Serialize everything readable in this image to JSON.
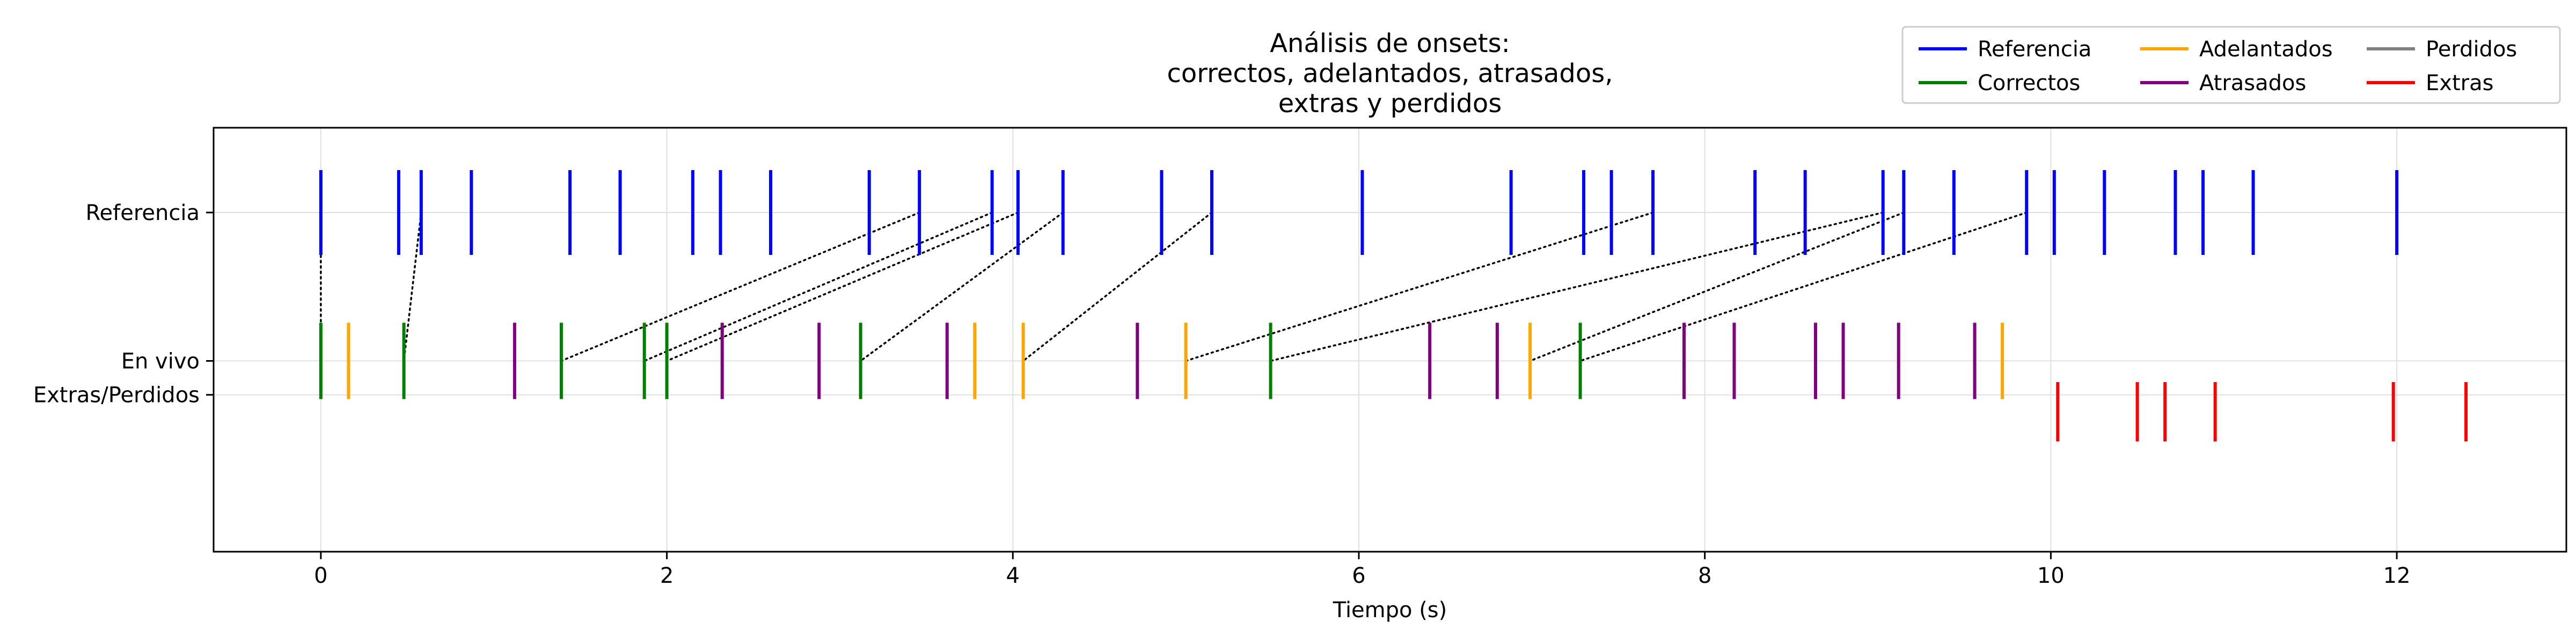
{
  "chart_data": {
    "type": "event-raster",
    "title": [
      "Análisis de onsets:",
      "correctos, adelantados, atrasados,",
      "extras y perdidos"
    ],
    "xlabel": "Tiempo (s)",
    "ylabel": "",
    "xlim": [
      -0.62,
      12.98
    ],
    "ylim": [
      0,
      10
    ],
    "grid": true,
    "legend_position": "top-right",
    "xticks": [
      0,
      2,
      4,
      6,
      8,
      10,
      12
    ],
    "rows": [
      {
        "label": "Referencia",
        "y": 8
      },
      {
        "label": "En vivo",
        "y": 4.5
      },
      {
        "label": "Extras/Perdidos",
        "y": 3.7
      }
    ],
    "colors": {
      "Referencia": "#0000ff",
      "Correctos": "#008000",
      "Adelantados": "#ffa500",
      "Atrasados": "#800080",
      "Perdidos": "#808080",
      "Extras": "#ff0000"
    },
    "legend": [
      "Referencia",
      "Correctos",
      "Adelantados",
      "Atrasados",
      "Perdidos",
      "Extras"
    ],
    "series": [
      {
        "name": "Referencia",
        "row": "Referencia",
        "y_range": [
          7,
          9
        ],
        "x": [
          0.0,
          0.45,
          0.58,
          0.87,
          1.44,
          1.73,
          2.15,
          2.31,
          2.6,
          3.17,
          3.46,
          3.88,
          4.03,
          4.29,
          4.86,
          5.15,
          6.02,
          6.88,
          7.3,
          7.46,
          7.7,
          8.29,
          8.58,
          9.03,
          9.15,
          9.44,
          9.86,
          10.02,
          10.31,
          10.72,
          10.88,
          11.17,
          12.0
        ]
      },
      {
        "name": "Correctos",
        "row": "En vivo",
        "y_range": [
          3.6,
          5.4
        ],
        "x": [
          0.0,
          0.48,
          1.39,
          1.87,
          2.0,
          3.12,
          5.49,
          7.28
        ]
      },
      {
        "name": "Adelantados",
        "row": "En vivo",
        "y_range": [
          3.6,
          5.4
        ],
        "x": [
          0.16,
          3.78,
          4.06,
          5.0,
          6.99,
          9.72
        ]
      },
      {
        "name": "Atrasados",
        "row": "En vivo",
        "y_range": [
          3.6,
          5.4
        ],
        "x": [
          1.12,
          2.32,
          2.88,
          3.62,
          4.72,
          6.41,
          6.8,
          7.88,
          8.17,
          8.64,
          8.8,
          9.12,
          9.56
        ]
      },
      {
        "name": "Perdidos",
        "row": "Extras/Perdidos",
        "y_range": [
          2.6,
          4.0
        ],
        "x": []
      },
      {
        "name": "Extras",
        "row": "Extras/Perdidos",
        "y_range": [
          2.6,
          4.0
        ],
        "x": [
          10.04,
          10.5,
          10.66,
          10.95,
          11.98,
          12.4
        ]
      }
    ],
    "matches": [
      {
        "ref": 0.0,
        "live": 0.0
      },
      {
        "ref": 0.58,
        "live": 0.48
      },
      {
        "ref": 3.46,
        "live": 1.39
      },
      {
        "ref": 3.88,
        "live": 1.87
      },
      {
        "ref": 4.03,
        "live": 2.0
      },
      {
        "ref": 4.29,
        "live": 3.12
      },
      {
        "ref": 5.15,
        "live": 4.06
      },
      {
        "ref": 7.7,
        "live": 5.0
      },
      {
        "ref": 9.03,
        "live": 5.49
      },
      {
        "ref": 9.15,
        "live": 6.99
      },
      {
        "ref": 9.86,
        "live": 7.28
      }
    ]
  }
}
